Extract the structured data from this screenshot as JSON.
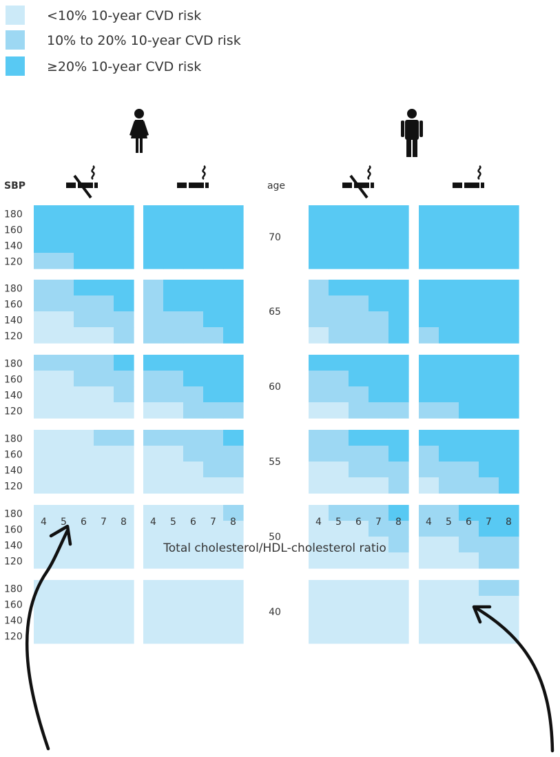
{
  "colors": {
    "low": "#cceaf8",
    "mid": "#9dd8f3",
    "high": "#58c9f3"
  },
  "legend": [
    {
      "level": 0,
      "label": "<10% 10-year CVD risk"
    },
    {
      "level": 1,
      "label": "10% to 20% 10-year CVD risk"
    },
    {
      "level": 2,
      "label": "≥20% 10-year CVD risk"
    }
  ],
  "labels": {
    "sbp_header": "SBP",
    "age_header": "age",
    "x_title": "Total cholesterol/HDL-cholesterol ratio"
  },
  "icons": {
    "female": "woman-icon",
    "male": "man-icon",
    "non_smoker": "no-smoking-icon",
    "smoker": "smoking-icon"
  },
  "chart_data": {
    "type": "heatmap",
    "xlabel": "Total cholesterol/HDL-cholesterol ratio",
    "ylabel": "SBP",
    "x": [
      "4",
      "5",
      "6",
      "7",
      "8"
    ],
    "y": [
      "180",
      "160",
      "140",
      "120"
    ],
    "ages": [
      "70",
      "65",
      "60",
      "55",
      "50",
      "40"
    ],
    "panels": [
      {
        "name": "female-nonsmoker",
        "sex": "female",
        "smoker": false
      },
      {
        "name": "female-smoker",
        "sex": "female",
        "smoker": true
      },
      {
        "name": "male-nonsmoker",
        "sex": "male",
        "smoker": false
      },
      {
        "name": "male-smoker",
        "sex": "male",
        "smoker": true
      }
    ],
    "levels": [
      "<10%",
      "10% to 20%",
      "≥20%"
    ],
    "grids": {
      "female-nonsmoker": [
        [
          [
            2,
            2,
            2,
            2,
            2
          ],
          [
            2,
            2,
            2,
            2,
            2
          ],
          [
            2,
            2,
            2,
            2,
            2
          ],
          [
            1,
            1,
            2,
            2,
            2
          ]
        ],
        [
          [
            1,
            1,
            2,
            2,
            2
          ],
          [
            1,
            1,
            1,
            1,
            2
          ],
          [
            0,
            0,
            1,
            1,
            1
          ],
          [
            0,
            0,
            0,
            0,
            1
          ]
        ],
        [
          [
            1,
            1,
            1,
            1,
            2
          ],
          [
            0,
            0,
            1,
            1,
            1
          ],
          [
            0,
            0,
            0,
            0,
            1
          ],
          [
            0,
            0,
            0,
            0,
            0
          ]
        ],
        [
          [
            0,
            0,
            0,
            1,
            1
          ],
          [
            0,
            0,
            0,
            0,
            0
          ],
          [
            0,
            0,
            0,
            0,
            0
          ],
          [
            0,
            0,
            0,
            0,
            0
          ]
        ],
        [
          [
            0,
            0,
            0,
            0,
            0
          ],
          [
            0,
            0,
            0,
            0,
            0
          ],
          [
            0,
            0,
            0,
            0,
            0
          ],
          [
            0,
            0,
            0,
            0,
            0
          ]
        ],
        [
          [
            0,
            0,
            0,
            0,
            0
          ],
          [
            0,
            0,
            0,
            0,
            0
          ],
          [
            0,
            0,
            0,
            0,
            0
          ],
          [
            0,
            0,
            0,
            0,
            0
          ]
        ]
      ],
      "female-smoker": [
        [
          [
            2,
            2,
            2,
            2,
            2
          ],
          [
            2,
            2,
            2,
            2,
            2
          ],
          [
            2,
            2,
            2,
            2,
            2
          ],
          [
            2,
            2,
            2,
            2,
            2
          ]
        ],
        [
          [
            1,
            2,
            2,
            2,
            2
          ],
          [
            1,
            2,
            2,
            2,
            2
          ],
          [
            1,
            1,
            1,
            2,
            2
          ],
          [
            1,
            1,
            1,
            1,
            2
          ]
        ],
        [
          [
            2,
            2,
            2,
            2,
            2
          ],
          [
            1,
            1,
            2,
            2,
            2
          ],
          [
            1,
            1,
            1,
            2,
            2
          ],
          [
            0,
            0,
            1,
            1,
            1
          ]
        ],
        [
          [
            1,
            1,
            1,
            1,
            2
          ],
          [
            0,
            0,
            1,
            1,
            1
          ],
          [
            0,
            0,
            0,
            1,
            1
          ],
          [
            0,
            0,
            0,
            0,
            0
          ]
        ],
        [
          [
            0,
            0,
            0,
            0,
            1
          ],
          [
            0,
            0,
            0,
            0,
            0
          ],
          [
            0,
            0,
            0,
            0,
            0
          ],
          [
            0,
            0,
            0,
            0,
            0
          ]
        ],
        [
          [
            0,
            0,
            0,
            0,
            0
          ],
          [
            0,
            0,
            0,
            0,
            0
          ],
          [
            0,
            0,
            0,
            0,
            0
          ],
          [
            0,
            0,
            0,
            0,
            0
          ]
        ]
      ],
      "male-nonsmoker": [
        [
          [
            2,
            2,
            2,
            2,
            2
          ],
          [
            2,
            2,
            2,
            2,
            2
          ],
          [
            2,
            2,
            2,
            2,
            2
          ],
          [
            2,
            2,
            2,
            2,
            2
          ]
        ],
        [
          [
            1,
            2,
            2,
            2,
            2
          ],
          [
            1,
            1,
            1,
            2,
            2
          ],
          [
            1,
            1,
            1,
            1,
            2
          ],
          [
            0,
            1,
            1,
            1,
            2
          ]
        ],
        [
          [
            2,
            2,
            2,
            2,
            2
          ],
          [
            1,
            1,
            2,
            2,
            2
          ],
          [
            1,
            1,
            1,
            2,
            2
          ],
          [
            0,
            0,
            1,
            1,
            1
          ]
        ],
        [
          [
            1,
            1,
            2,
            2,
            2
          ],
          [
            1,
            1,
            1,
            1,
            2
          ],
          [
            0,
            0,
            1,
            1,
            1
          ],
          [
            0,
            0,
            0,
            0,
            1
          ]
        ],
        [
          [
            0,
            1,
            1,
            1,
            2
          ],
          [
            0,
            0,
            0,
            1,
            1
          ],
          [
            0,
            0,
            0,
            0,
            1
          ],
          [
            0,
            0,
            0,
            0,
            0
          ]
        ],
        [
          [
            0,
            0,
            0,
            0,
            0
          ],
          [
            0,
            0,
            0,
            0,
            0
          ],
          [
            0,
            0,
            0,
            0,
            0
          ],
          [
            0,
            0,
            0,
            0,
            0
          ]
        ]
      ],
      "male-smoker": [
        [
          [
            2,
            2,
            2,
            2,
            2
          ],
          [
            2,
            2,
            2,
            2,
            2
          ],
          [
            2,
            2,
            2,
            2,
            2
          ],
          [
            2,
            2,
            2,
            2,
            2
          ]
        ],
        [
          [
            2,
            2,
            2,
            2,
            2
          ],
          [
            2,
            2,
            2,
            2,
            2
          ],
          [
            2,
            2,
            2,
            2,
            2
          ],
          [
            1,
            2,
            2,
            2,
            2
          ]
        ],
        [
          [
            2,
            2,
            2,
            2,
            2
          ],
          [
            2,
            2,
            2,
            2,
            2
          ],
          [
            2,
            2,
            2,
            2,
            2
          ],
          [
            1,
            1,
            2,
            2,
            2
          ]
        ],
        [
          [
            2,
            2,
            2,
            2,
            2
          ],
          [
            1,
            2,
            2,
            2,
            2
          ],
          [
            1,
            1,
            1,
            2,
            2
          ],
          [
            0,
            1,
            1,
            1,
            2
          ]
        ],
        [
          [
            1,
            1,
            2,
            2,
            2
          ],
          [
            1,
            1,
            1,
            2,
            2
          ],
          [
            0,
            0,
            1,
            1,
            1
          ],
          [
            0,
            0,
            0,
            1,
            1
          ]
        ],
        [
          [
            0,
            0,
            0,
            1,
            1
          ],
          [
            0,
            0,
            0,
            0,
            0
          ],
          [
            0,
            0,
            0,
            0,
            0
          ],
          [
            0,
            0,
            0,
            0,
            0
          ]
        ]
      ]
    }
  }
}
